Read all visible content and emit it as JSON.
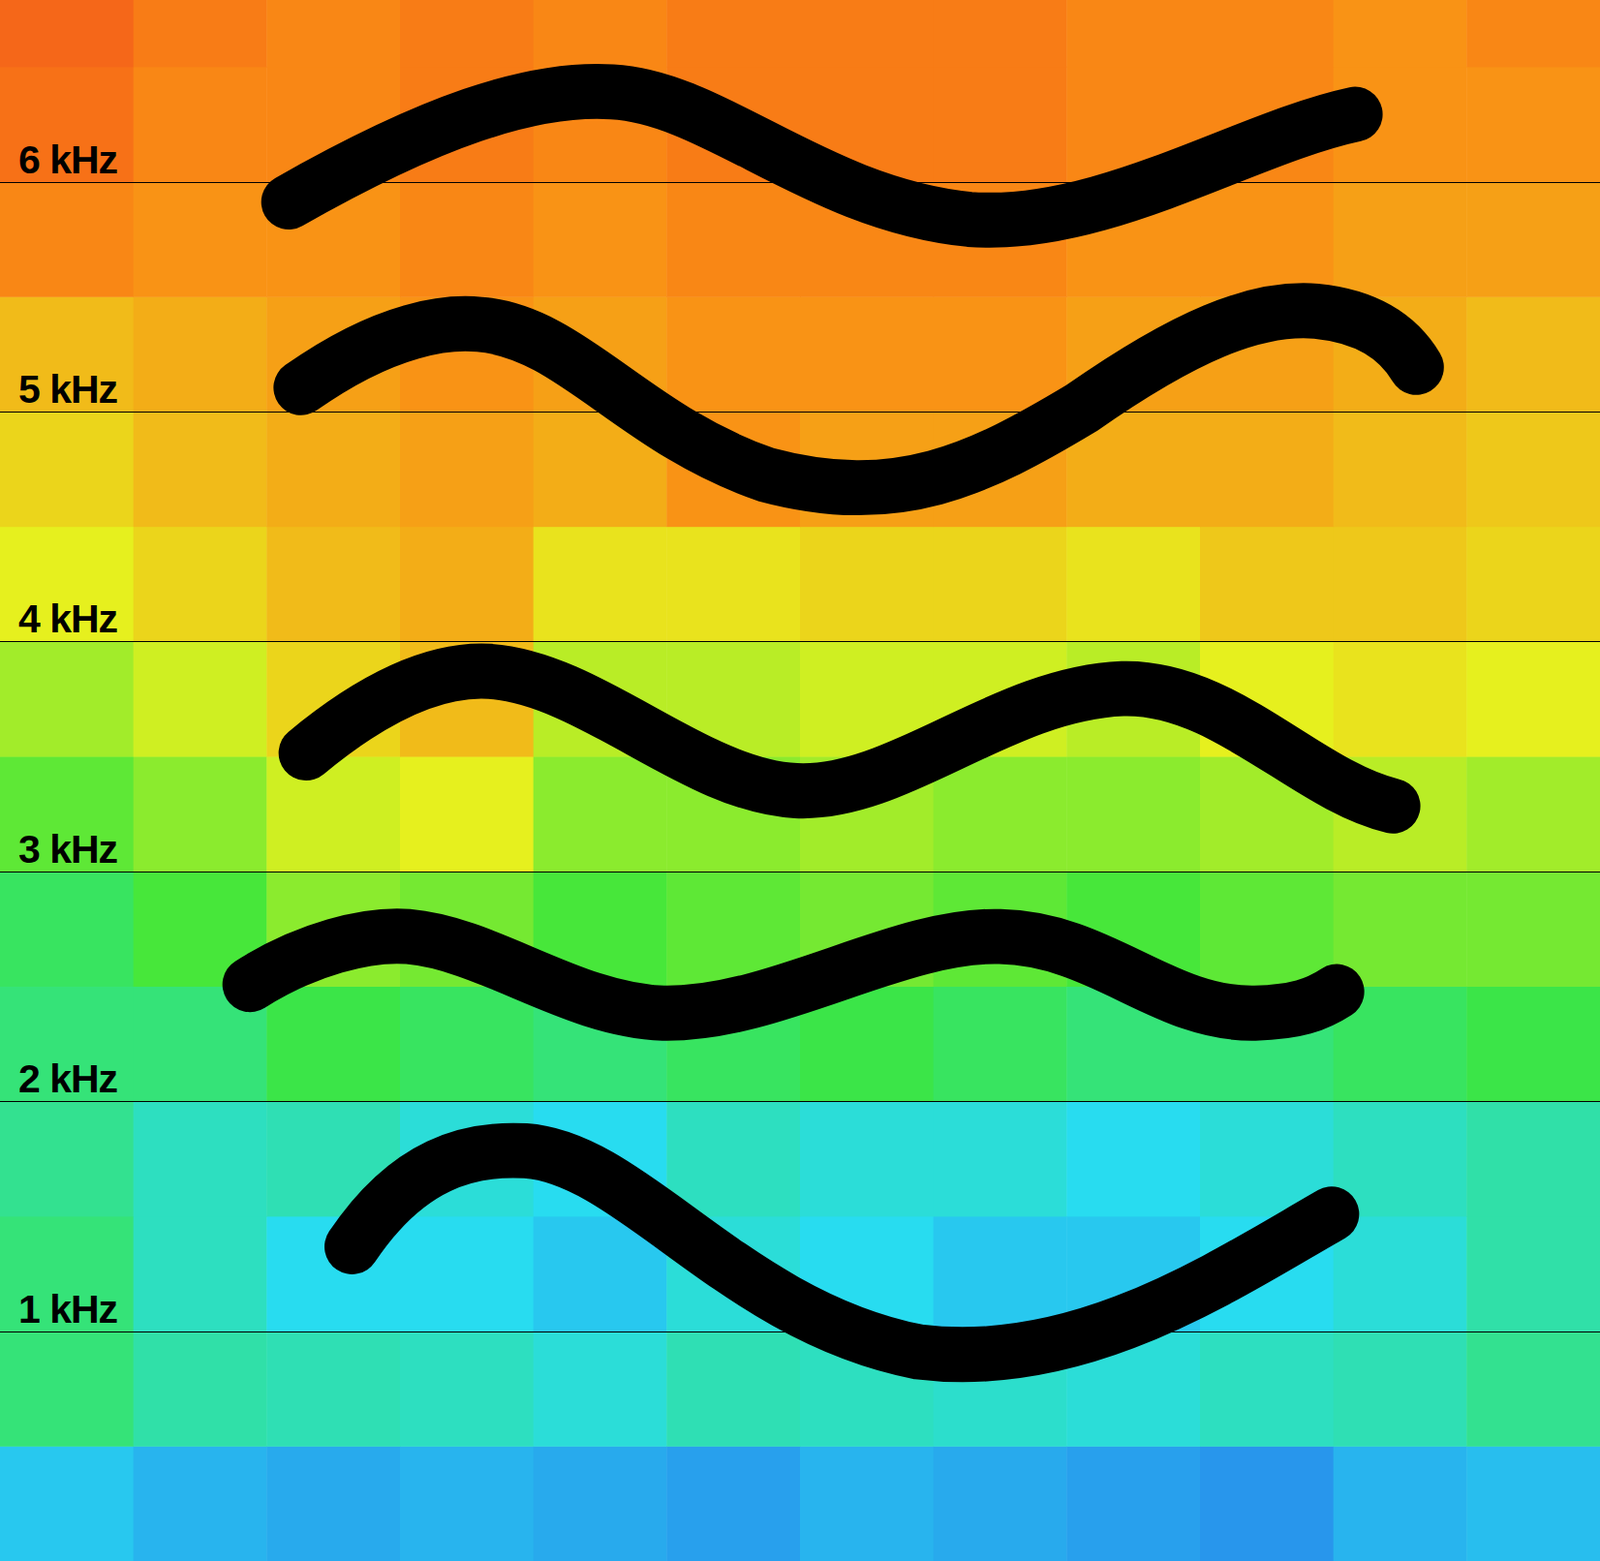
{
  "chart_data": {
    "type": "heatmap",
    "ylim": [
      0,
      6.79
    ],
    "yticks": [
      {
        "value": 1,
        "label": "1 kHz"
      },
      {
        "value": 2,
        "label": "2 kHz"
      },
      {
        "value": 3,
        "label": "3 kHz"
      },
      {
        "value": 4,
        "label": "4 kHz"
      },
      {
        "value": 5,
        "label": "5 kHz"
      },
      {
        "value": 6,
        "label": "6 kHz"
      }
    ],
    "xlim": [
      0,
      12
    ],
    "xbins": [
      0,
      1,
      2,
      3,
      4,
      5,
      6,
      7,
      8,
      9,
      10,
      11,
      12
    ],
    "ybins": [
      0,
      0.5,
      1,
      1.5,
      2,
      2.5,
      3,
      3.5,
      4,
      4.5,
      5,
      5.5,
      6,
      6.5,
      7
    ],
    "zlim": [
      0,
      100
    ],
    "grid": true,
    "tick_labels": "y",
    "cells": [
      [
        38,
        36,
        35,
        36,
        35,
        34,
        36,
        35,
        34,
        33,
        36,
        37
      ],
      [
        50,
        46,
        45,
        44,
        42,
        45,
        44,
        43,
        42,
        44,
        45,
        48
      ],
      [
        50,
        44,
        40,
        40,
        38,
        42,
        40,
        38,
        38,
        40,
        42,
        46
      ],
      [
        48,
        44,
        45,
        42,
        40,
        44,
        42,
        42,
        40,
        42,
        44,
        46
      ],
      [
        50,
        50,
        54,
        52,
        50,
        52,
        54,
        52,
        50,
        50,
        52,
        54
      ],
      [
        52,
        56,
        62,
        60,
        56,
        58,
        60,
        58,
        56,
        58,
        60,
        60
      ],
      [
        58,
        62,
        68,
        70,
        62,
        62,
        64,
        62,
        62,
        64,
        66,
        64
      ],
      [
        64,
        68,
        74,
        78,
        66,
        66,
        68,
        68,
        66,
        70,
        72,
        70
      ],
      [
        70,
        74,
        78,
        80,
        72,
        72,
        74,
        74,
        72,
        76,
        76,
        74
      ],
      [
        74,
        78,
        80,
        82,
        80,
        84,
        82,
        82,
        80,
        80,
        78,
        76
      ],
      [
        78,
        80,
        82,
        84,
        82,
        84,
        84,
        84,
        82,
        82,
        80,
        78
      ],
      [
        86,
        84,
        84,
        86,
        84,
        86,
        86,
        86,
        84,
        84,
        82,
        82
      ],
      [
        90,
        86,
        86,
        88,
        86,
        88,
        88,
        88,
        86,
        86,
        84,
        84
      ],
      [
        92,
        88,
        86,
        88,
        86,
        88,
        88,
        88,
        86,
        86,
        84,
        86
      ]
    ]
  }
}
